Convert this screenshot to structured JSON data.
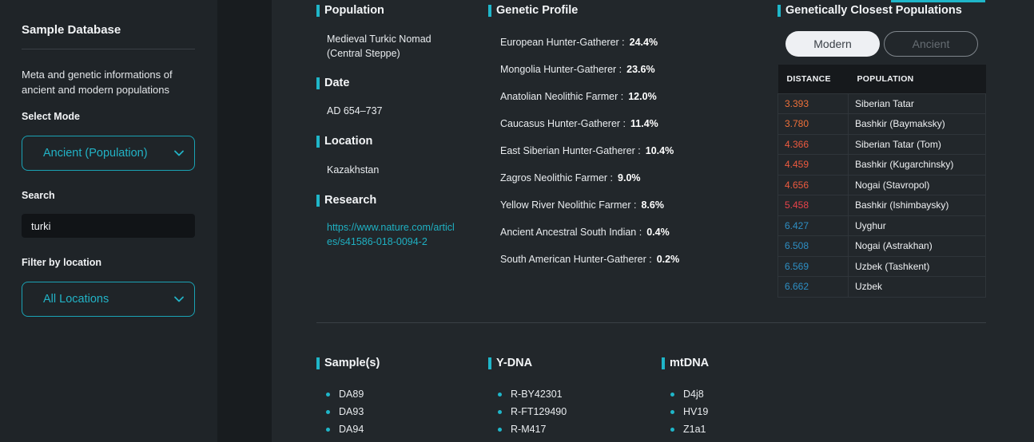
{
  "sidebar": {
    "title": "Sample Database",
    "description": "Meta and genetic informations of ancient and modern populations",
    "mode_label": "Select Mode",
    "mode_value": "Ancient (Population)",
    "search_label": "Search",
    "search_value": "turki",
    "location_label": "Filter by location",
    "location_value": "All Locations"
  },
  "info": {
    "population_heading": "Population",
    "population_value": "Medieval Turkic Nomad (Central Steppe)",
    "date_heading": "Date",
    "date_value": "AD 654–737",
    "location_heading": "Location",
    "location_value": "Kazakhstan",
    "research_heading": "Research",
    "research_link": "https://www.nature.com/articles/s41586-018-0094-2"
  },
  "genetic_profile": {
    "heading": "Genetic Profile",
    "components": [
      {
        "name": "European Hunter-Gatherer :",
        "value": "24.4%"
      },
      {
        "name": "Mongolia Hunter-Gatherer :",
        "value": "23.6%"
      },
      {
        "name": "Anatolian Neolithic Farmer :",
        "value": "12.0%"
      },
      {
        "name": "Caucasus Hunter-Gatherer :",
        "value": "11.4%"
      },
      {
        "name": "East Siberian Hunter-Gatherer :",
        "value": "10.4%"
      },
      {
        "name": "Zagros Neolithic Farmer :",
        "value": "9.0%"
      },
      {
        "name": "Yellow River Neolithic Farmer :",
        "value": "8.6%"
      },
      {
        "name": "Ancient Ancestral South Indian :",
        "value": "0.4%"
      },
      {
        "name": "South American Hunter-Gatherer :",
        "value": "0.2%"
      }
    ]
  },
  "closest": {
    "heading": "Genetically Closest Populations",
    "toggle_modern": "Modern",
    "toggle_ancient": "Ancient",
    "col_distance": "DISTANCE",
    "col_population": "POPULATION",
    "rows": [
      {
        "distance": "3.393",
        "population": "Siberian Tatar",
        "color": "#f0713a"
      },
      {
        "distance": "3.780",
        "population": "Bashkir (Baymaksky)",
        "color": "#f0713a"
      },
      {
        "distance": "4.366",
        "population": "Siberian Tatar (Tom)",
        "color": "#ee5a3f"
      },
      {
        "distance": "4.459",
        "population": "Bashkir (Kugarchinsky)",
        "color": "#ee5a3f"
      },
      {
        "distance": "4.656",
        "population": "Nogai (Stavropol)",
        "color": "#ee5a3f"
      },
      {
        "distance": "5.458",
        "population": "Bashkir (Ishimbaysky)",
        "color": "#e9434a"
      },
      {
        "distance": "6.427",
        "population": "Uyghur",
        "color": "#2e8fc4"
      },
      {
        "distance": "6.508",
        "population": "Nogai (Astrakhan)",
        "color": "#2e8fc4"
      },
      {
        "distance": "6.569",
        "population": "Uzbek (Tashkent)",
        "color": "#2e8fc4"
      },
      {
        "distance": "6.662",
        "population": "Uzbek",
        "color": "#2e8fc4"
      }
    ]
  },
  "samples": {
    "heading": "Sample(s)",
    "items": [
      "DA89",
      "DA93",
      "DA94"
    ]
  },
  "ydna": {
    "heading": "Y-DNA",
    "items": [
      "R-BY42301",
      "R-FT129490",
      "R-M417"
    ]
  },
  "mtdna": {
    "heading": "mtDNA",
    "items": [
      "D4j8",
      "HV19",
      "Z1a1"
    ]
  }
}
